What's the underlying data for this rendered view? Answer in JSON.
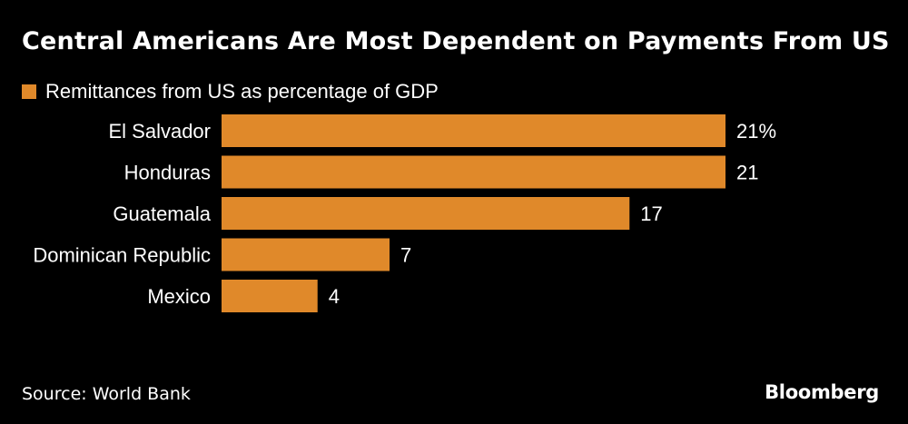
{
  "chart_data": {
    "type": "bar",
    "orientation": "horizontal",
    "title": "Central Americans Are Most Dependent on Payments From US",
    "categories": [
      "El Salvador",
      "Honduras",
      "Guatemala",
      "Dominican Republic",
      "Mexico"
    ],
    "series": [
      {
        "name": "Remittances from US as percentage of GDP",
        "values": [
          21,
          21,
          17,
          7,
          4
        ],
        "value_labels": [
          "21%",
          "21",
          "17",
          "7",
          "4"
        ]
      }
    ],
    "xlim": [
      0,
      21
    ],
    "grid": false,
    "legend_position": "top-left",
    "bar_color": "#e0892a"
  },
  "footer": {
    "source": "Source: World Bank",
    "brand": "Bloomberg"
  },
  "colors": {
    "background": "#000000",
    "text": "#ffffff",
    "bar": "#e0892a"
  }
}
